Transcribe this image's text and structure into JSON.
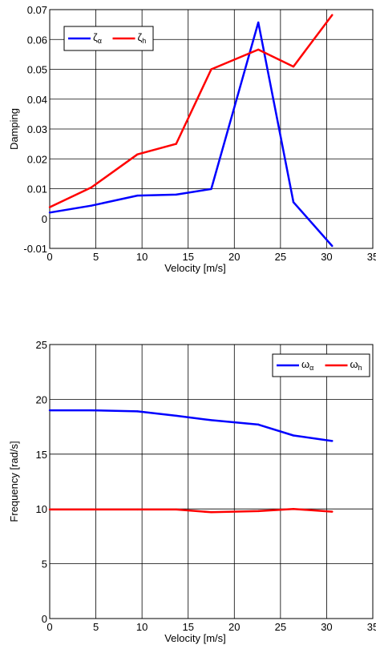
{
  "chart_data": [
    {
      "type": "line",
      "xlabel": "Velocity [m/s]",
      "ylabel": "Damping",
      "xlim": [
        0,
        35
      ],
      "ylim": [
        -0.01,
        0.07
      ],
      "xticks": [
        "0",
        "5",
        "10",
        "15",
        "20",
        "25",
        "30",
        "35"
      ],
      "yticks": [
        "-0.01",
        "0",
        "0.01",
        "0.02",
        "0.03",
        "0.04",
        "0.05",
        "0.06",
        "0.07"
      ],
      "grid": true,
      "legend_position": "top-left",
      "series": [
        {
          "name": "ζα",
          "name_base": "ζ",
          "name_sub": "α",
          "color": "#0000ff",
          "x": [
            0,
            4.5,
            9.5,
            13.7,
            17.5,
            22.6,
            26.4,
            30.6
          ],
          "y": [
            0.002,
            0.0043,
            0.0077,
            0.008,
            0.0099,
            0.0657,
            0.0055,
            -0.0092
          ]
        },
        {
          "name": "ζh",
          "name_base": "ζ",
          "name_sub": "h",
          "color": "#ff0000",
          "x": [
            0,
            4.5,
            9.5,
            13.7,
            17.5,
            22.6,
            26.4,
            30.6
          ],
          "y": [
            0.0038,
            0.0104,
            0.0215,
            0.025,
            0.05,
            0.0566,
            0.0509,
            0.0682
          ]
        }
      ]
    },
    {
      "type": "line",
      "xlabel": "Velocity [m/s]",
      "ylabel": "Frequency [rad/s]",
      "xlim": [
        0,
        35
      ],
      "ylim": [
        0,
        25
      ],
      "xticks": [
        "0",
        "5",
        "10",
        "15",
        "20",
        "25",
        "30",
        "35"
      ],
      "yticks": [
        "0",
        "5",
        "10",
        "15",
        "20",
        "25"
      ],
      "grid": true,
      "legend_position": "top-right",
      "series": [
        {
          "name": "ωα",
          "name_base": "ω",
          "name_sub": "α",
          "color": "#0000ff",
          "x": [
            0,
            4.5,
            9.5,
            13.7,
            17.5,
            22.6,
            26.4,
            30.6
          ],
          "y": [
            19.0,
            19.0,
            18.9,
            18.5,
            18.1,
            17.7,
            16.7,
            16.2
          ]
        },
        {
          "name": "ωh",
          "name_base": "ω",
          "name_sub": "h",
          "color": "#ff0000",
          "x": [
            0,
            4.5,
            9.5,
            13.7,
            17.5,
            22.6,
            26.4,
            30.6
          ],
          "y": [
            9.95,
            9.95,
            9.95,
            9.95,
            9.7,
            9.8,
            10.0,
            9.75
          ]
        }
      ]
    }
  ]
}
